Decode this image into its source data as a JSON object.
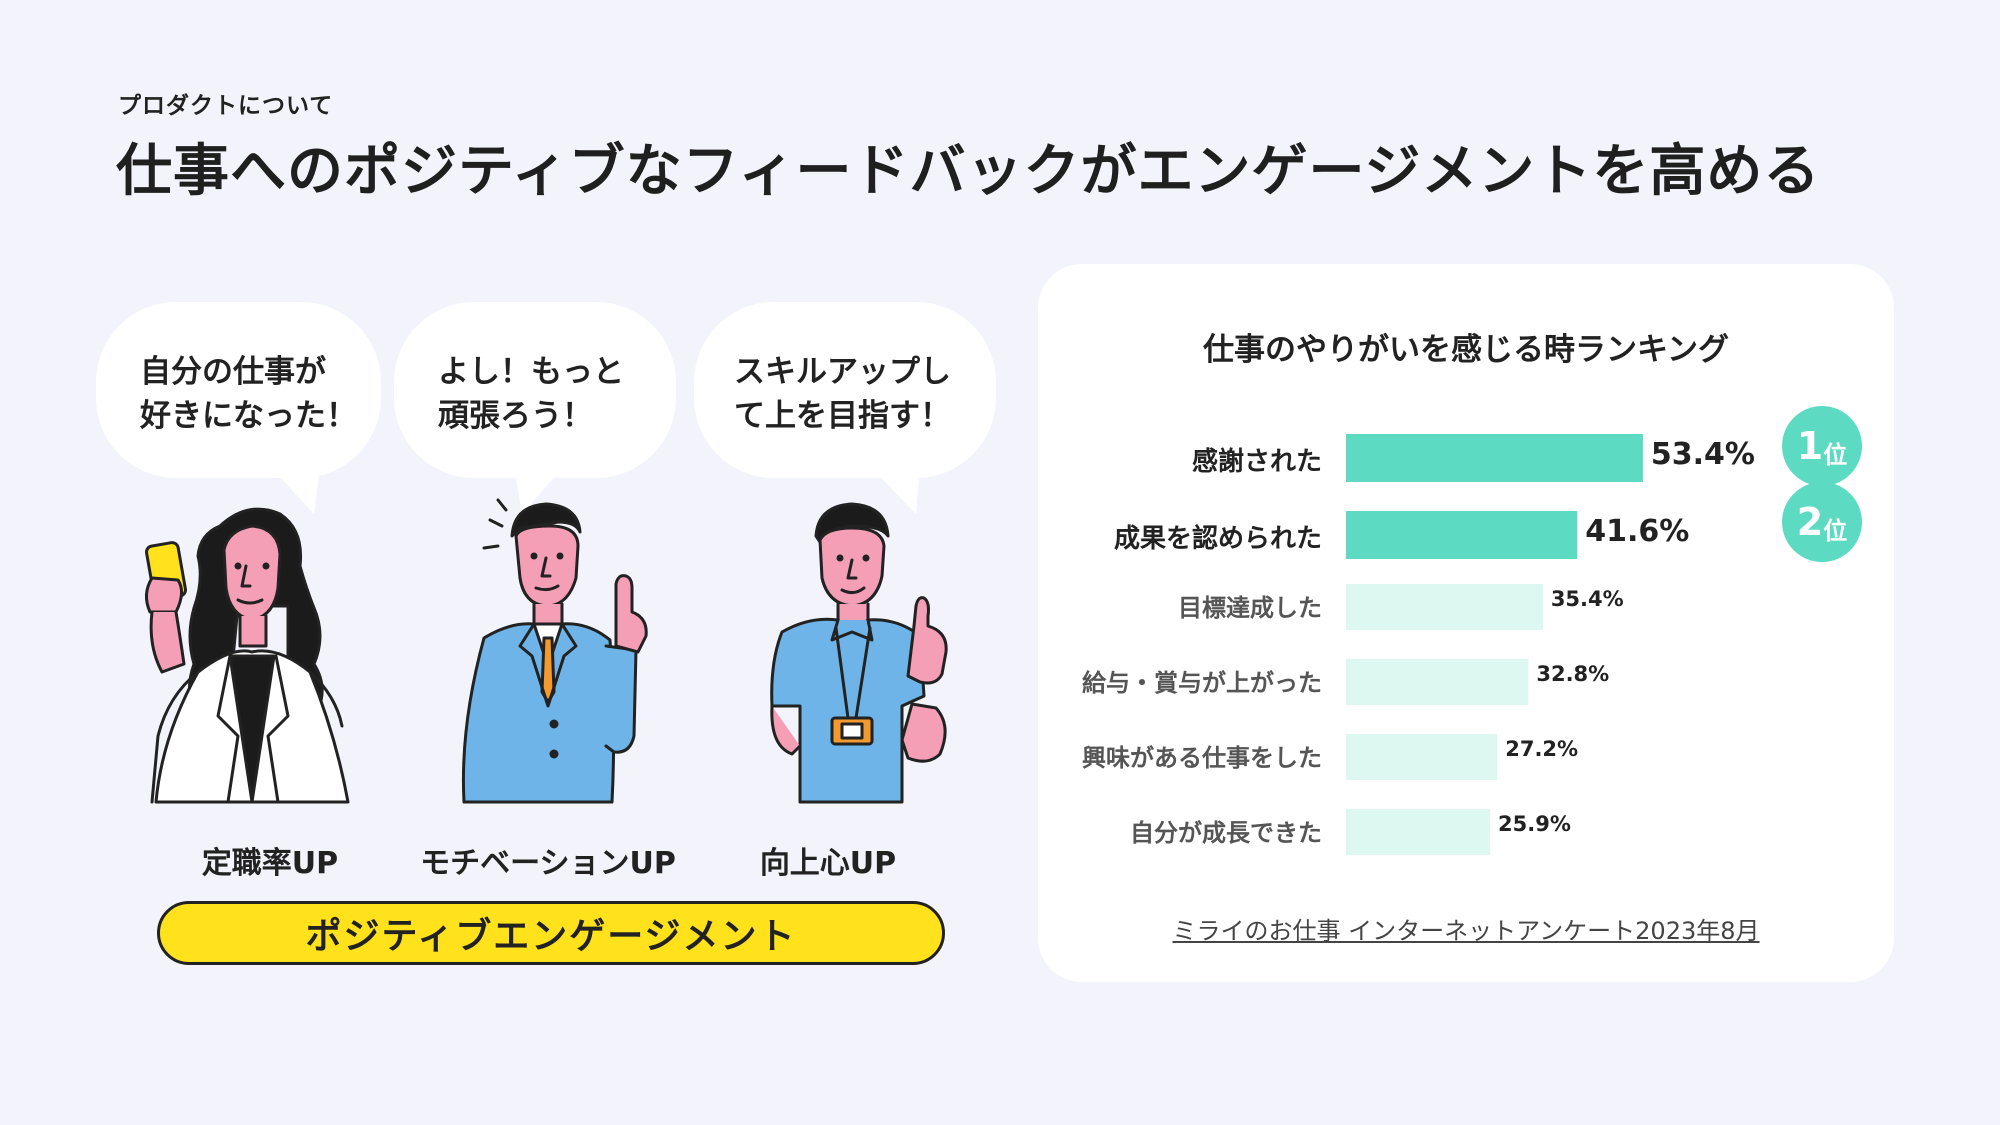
{
  "header": {
    "eyebrow": "プロダクトについて",
    "title": "仕事へのポジティブなフィードバックがエンゲージメントを高める"
  },
  "bubbles": [
    {
      "line1": "自分の仕事が",
      "line2": "好きになった！"
    },
    {
      "line1": "よし！もっと",
      "line2": "頑張ろう！"
    },
    {
      "line1": "スキルアップし",
      "line2": "て上を目指す！"
    }
  ],
  "captions": [
    "定職率UP",
    "モチベーションUP",
    "向上心UP"
  ],
  "engagement_label": "ポジティブエンゲージメント",
  "ranks": [
    {
      "num": "1",
      "suffix": "位"
    },
    {
      "num": "2",
      "suffix": "位"
    }
  ],
  "source": "ミライのお仕事 インターネットアンケート2023年8月",
  "colors": {
    "background": "#f3f4fb",
    "accent_yellow": "#ffe11c",
    "bar_top": "#5cdbc2",
    "bar_rest": "#dcf8f1",
    "skin": "#f49fb6",
    "suit_blue": "#6fb4e8"
  },
  "chart_data": {
    "type": "bar",
    "orientation": "horizontal",
    "title": "仕事のやりがいを感じる時ランキング",
    "categories": [
      "感謝された",
      "成果を認められた",
      "目標達成した",
      "給与・賞与が上がった",
      "興味がある仕事をした",
      "自分が成長できた"
    ],
    "values": [
      53.4,
      41.6,
      35.4,
      32.8,
      27.2,
      25.9
    ],
    "value_labels": [
      "53.4%",
      "41.6%",
      "35.4%",
      "32.8%",
      "27.2%",
      "25.9%"
    ],
    "xlim": [
      0,
      100
    ],
    "grid": false,
    "legend": "none"
  }
}
